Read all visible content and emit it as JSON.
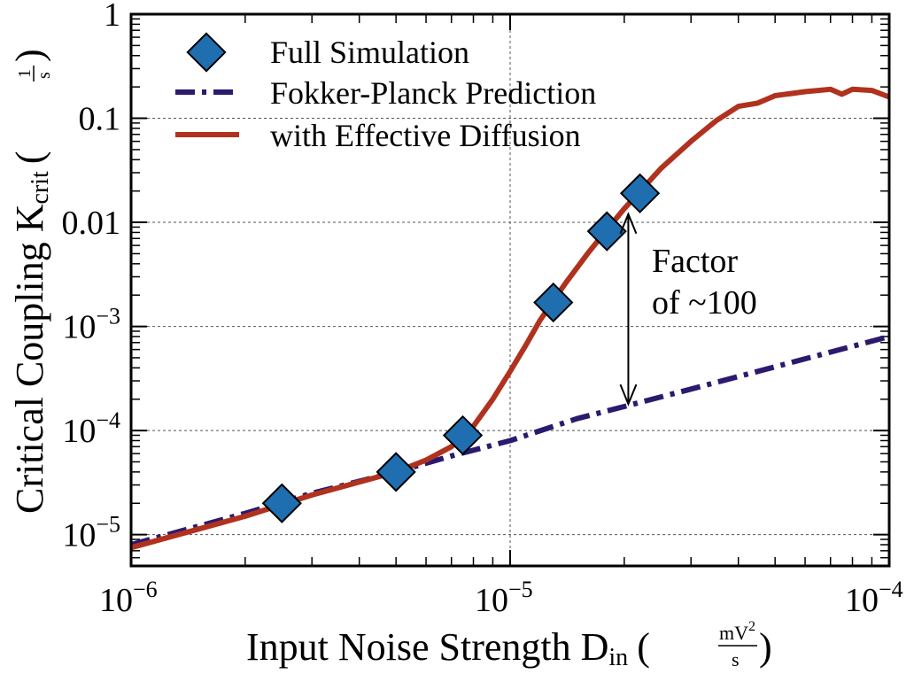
{
  "chart_data": {
    "type": "line",
    "xscale": "log",
    "yscale": "log",
    "xlim": [
      1e-06,
      0.0001
    ],
    "ylim": [
      5e-06,
      1
    ],
    "grid": true,
    "legend_position": "top-left",
    "xlabel": {
      "main": "Input Noise Strength D",
      "sub": "in",
      "unit_open": "(",
      "unit_num": "mV",
      "unit_num_sup": "2",
      "unit_den": "s",
      "unit_close": ")"
    },
    "ylabel": {
      "main": "Critical Coupling K",
      "sub": "crit",
      "unit_open": "(",
      "unit_num": "1",
      "unit_den": "s",
      "unit_close": ")"
    },
    "x_ticks": [
      {
        "value": 1e-06,
        "base": "10",
        "exp": "−6"
      },
      {
        "value": 1e-05,
        "base": "10",
        "exp": "−5"
      },
      {
        "value": 0.0001,
        "base": "10",
        "exp": "−4"
      }
    ],
    "y_ticks": [
      {
        "value": 1,
        "label": "1"
      },
      {
        "value": 0.1,
        "label": "0.1"
      },
      {
        "value": 0.01,
        "label": "0.01"
      },
      {
        "value": 0.001,
        "base": "10",
        "exp": "−3"
      },
      {
        "value": 0.0001,
        "base": "10",
        "exp": "−4"
      },
      {
        "value": 1e-05,
        "base": "10",
        "exp": "−5"
      }
    ],
    "series": [
      {
        "name": "Full Simulation",
        "kind": "marker",
        "color": "#1f6fb0",
        "x": [
          2.5e-06,
          5e-06,
          7.5e-06,
          1.3e-05,
          1.8e-05,
          2.2e-05
        ],
        "y": [
          2e-05,
          4e-05,
          9e-05,
          0.0017,
          0.0082,
          0.019
        ]
      },
      {
        "name": "Fokker-Planck Prediction",
        "kind": "dashdot",
        "color": "#2b1a6e",
        "x": [
          1e-06,
          2e-06,
          3e-06,
          5e-06,
          7e-06,
          1e-05,
          1.5e-05,
          2e-05,
          3e-05,
          5e-06,
          0.0001
        ],
        "y": [
          8e-06,
          1.6e-05,
          2.5e-05,
          4e-05,
          5.7e-05,
          8e-05,
          0.00013,
          0.00017,
          0.00025,
          4e-05,
          0.0008
        ]
      },
      {
        "name": "with Effective Diffusion",
        "kind": "solid",
        "color": "#b0321e",
        "x": [
          1e-06,
          2e-06,
          3e-06,
          5e-06,
          6e-06,
          7e-06,
          8e-06,
          9e-06,
          1e-05,
          1.1e-05,
          1.2e-05,
          1.4e-05,
          1.6e-05,
          1.8e-05,
          2e-05,
          2.5e-05,
          3e-05,
          3.5e-05,
          4e-05,
          4.5e-05,
          5e-05,
          6e-05,
          7e-05,
          7.5e-05,
          8e-05,
          9e-05,
          0.0001
        ],
        "y": [
          7.5e-06,
          1.5e-05,
          2.4e-05,
          4e-05,
          5.2e-05,
          7e-05,
          0.00011,
          0.0002,
          0.00037,
          0.00066,
          0.00115,
          0.0026,
          0.005,
          0.0085,
          0.0135,
          0.033,
          0.06,
          0.095,
          0.13,
          0.14,
          0.165,
          0.18,
          0.19,
          0.17,
          0.19,
          0.185,
          0.16
        ]
      }
    ],
    "annotation": {
      "line1": "Factor",
      "line2": "of ~100",
      "arrow_x": 2.05e-05,
      "arrow_y_top": 0.012,
      "arrow_y_bottom": 0.00018
    }
  }
}
